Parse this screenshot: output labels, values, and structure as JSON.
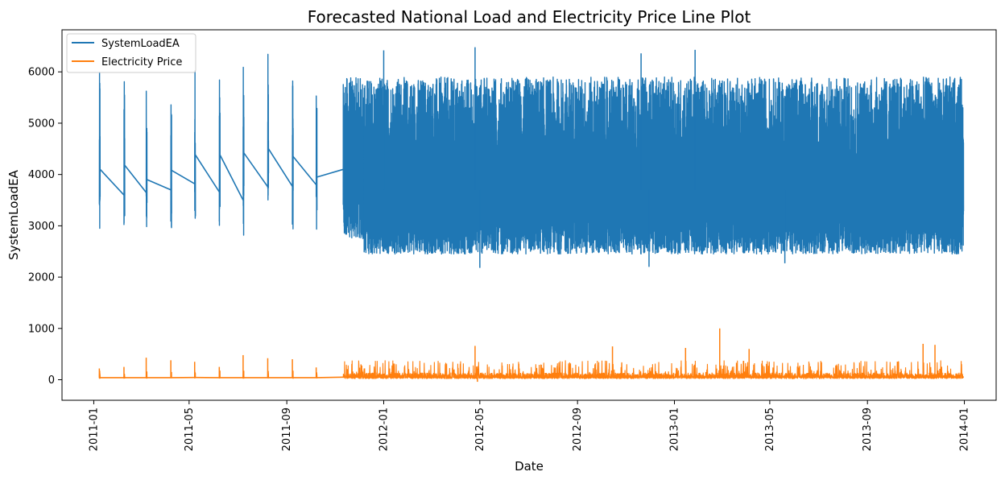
{
  "chart_data": {
    "type": "line",
    "title": "Forecasted National Load and Electricity Price Line Plot",
    "xlabel": "Date",
    "ylabel": "SystemLoadEA",
    "xlim": [
      "2010-11-22",
      "2014-02-10"
    ],
    "ylim": [
      -400,
      6820
    ],
    "x_ticks": [
      "2011-01",
      "2011-05",
      "2011-09",
      "2012-01",
      "2012-05",
      "2012-09",
      "2013-01",
      "2013-05",
      "2013-09",
      "2014-01"
    ],
    "y_ticks": [
      0,
      1000,
      2000,
      3000,
      4000,
      5000,
      6000
    ],
    "grid": false,
    "legend": {
      "position": "upper-left",
      "entries": [
        "SystemLoadEA",
        "Electricity Price"
      ]
    },
    "colors": {
      "SystemLoadEA": "#1f77b4",
      "Electricity Price": "#ff7f0e"
    },
    "series": [
      {
        "name": "SystemLoadEA",
        "segments": [
          {
            "start": "2011-01-08",
            "end": "2011-01-09",
            "low": 2780,
            "high": 6000,
            "mid": 4100
          },
          {
            "start": "2011-02-08",
            "end": "2011-02-09",
            "low": 2820,
            "high": 6050,
            "mid": 4180
          },
          {
            "start": "2011-03-08",
            "end": "2011-03-09",
            "low": 2860,
            "high": 5880,
            "mid": 3900
          },
          {
            "start": "2011-04-08",
            "end": "2011-04-09",
            "low": 2880,
            "high": 5640,
            "mid": 4080
          },
          {
            "start": "2011-05-08",
            "end": "2011-05-09",
            "low": 2860,
            "high": 6120,
            "mid": 4380
          },
          {
            "start": "2011-06-08",
            "end": "2011-06-09",
            "low": 2740,
            "high": 6200,
            "mid": 4380
          },
          {
            "start": "2011-07-08",
            "end": "2011-07-09",
            "low": 2800,
            "high": 6170,
            "mid": 4420
          },
          {
            "start": "2011-08-08",
            "end": "2011-08-09",
            "low": 2920,
            "high": 6350,
            "mid": 4500
          },
          {
            "start": "2011-09-08",
            "end": "2011-09-09",
            "low": 2930,
            "high": 6060,
            "mid": 4350
          },
          {
            "start": "2011-10-08",
            "end": "2011-10-09",
            "low": 2930,
            "high": 5940,
            "mid": 3950
          },
          {
            "start": "2011-11-11",
            "end": "2011-12-07",
            "low": 2740,
            "high": 5900,
            "mid": 4100
          },
          {
            "start": "2011-12-07",
            "end": "2013-12-31",
            "low": 2450,
            "high": 5900,
            "mid": 3700
          }
        ],
        "connectors": [
          [
            "2011-01-09",
            4100,
            "2011-02-08",
            3600
          ],
          [
            "2011-02-09",
            4180,
            "2011-03-08",
            3650
          ],
          [
            "2011-03-09",
            3900,
            "2011-04-08",
            3700
          ],
          [
            "2011-04-09",
            4080,
            "2011-05-08",
            3820
          ],
          [
            "2011-05-09",
            4380,
            "2011-06-08",
            3660
          ],
          [
            "2011-06-09",
            4380,
            "2011-07-08",
            3500
          ],
          [
            "2011-07-09",
            4420,
            "2011-08-08",
            3760
          ],
          [
            "2011-08-09",
            4500,
            "2011-09-08",
            3770
          ],
          [
            "2011-09-09",
            4350,
            "2011-10-08",
            3800
          ],
          [
            "2011-10-09",
            3950,
            "2011-11-11",
            4100
          ]
        ],
        "notable_peaks": [
          [
            "2012-04-25",
            6480
          ],
          [
            "2012-01-01",
            6420
          ],
          [
            "2013-01-27",
            6430
          ],
          [
            "2012-11-20",
            6360
          ]
        ],
        "notable_lows": [
          [
            "2012-05-01",
            2180
          ],
          [
            "2012-11-30",
            2200
          ],
          [
            "2013-05-20",
            2270
          ]
        ]
      },
      {
        "name": "Electricity Price",
        "baseline": 40,
        "flat_points": [
          [
            "2011-01-08",
            40
          ],
          [
            "2011-02-08",
            40
          ],
          [
            "2011-03-08",
            40
          ],
          [
            "2011-04-08",
            40
          ],
          [
            "2011-05-08",
            45
          ],
          [
            "2011-06-08",
            40
          ],
          [
            "2011-07-08",
            40
          ],
          [
            "2011-08-08",
            40
          ],
          [
            "2011-09-08",
            40
          ],
          [
            "2011-10-08",
            40
          ],
          [
            "2011-11-11",
            50
          ]
        ],
        "spikes": [
          [
            "2011-01-08",
            220
          ],
          [
            "2011-02-08",
            250
          ],
          [
            "2011-03-08",
            430
          ],
          [
            "2011-04-08",
            380
          ],
          [
            "2011-05-08",
            350
          ],
          [
            "2011-06-08",
            250
          ],
          [
            "2011-07-08",
            480
          ],
          [
            "2011-08-08",
            420
          ],
          [
            "2011-09-08",
            400
          ],
          [
            "2011-10-08",
            240
          ],
          [
            "2012-04-25",
            660
          ],
          [
            "2012-10-15",
            650
          ],
          [
            "2013-01-15",
            620
          ],
          [
            "2013-02-27",
            1000
          ],
          [
            "2013-04-05",
            600
          ],
          [
            "2013-11-10",
            700
          ],
          [
            "2013-11-25",
            680
          ],
          [
            "2012-04-28",
            -40
          ]
        ]
      }
    ]
  }
}
